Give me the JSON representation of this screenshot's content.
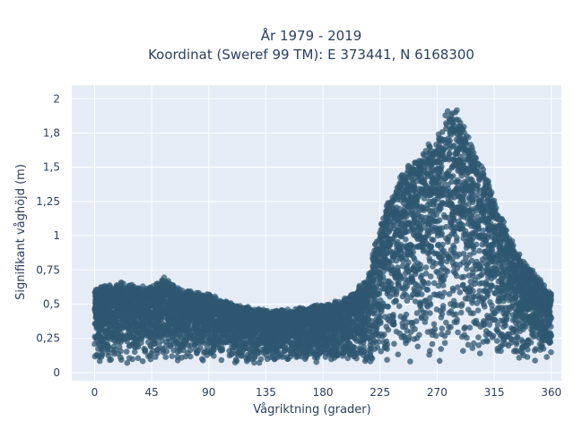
{
  "chart_data": {
    "type": "scatter",
    "title_line1": "År 1979 - 2019",
    "title_line2": "Koordinat (Sweref 99 TM): E 373441, N 6168300",
    "xlabel": "Vågriktning (grader)",
    "ylabel": "Signifikant våghöjd (m)",
    "xlim": [
      -18,
      368
    ],
    "ylim": [
      -0.06,
      2.1
    ],
    "x_ticks": [
      0,
      45,
      90,
      135,
      180,
      225,
      270,
      315,
      360
    ],
    "x_tick_labels": [
      "0",
      "45",
      "90",
      "135",
      "180",
      "225",
      "270",
      "315",
      "360"
    ],
    "y_ticks": [
      0,
      0.25,
      0.5,
      0.75,
      1,
      1.25,
      1.5,
      1.75,
      2
    ],
    "y_tick_labels": [
      "0",
      "0,25",
      "0,5",
      "0,75",
      "1",
      "1,25",
      "1,5",
      "1,8",
      "2"
    ],
    "grid": true,
    "marker_color": "#2f5770",
    "plot_bg": "#e5ecf6",
    "envelope": {
      "direction": [
        0,
        20,
        45,
        55,
        70,
        90,
        110,
        135,
        160,
        180,
        200,
        215,
        225,
        240,
        255,
        270,
        280,
        290,
        300,
        315,
        330,
        345,
        360
      ],
      "max_height": [
        0.62,
        0.66,
        0.63,
        0.7,
        0.6,
        0.58,
        0.5,
        0.46,
        0.47,
        0.5,
        0.55,
        0.7,
        1.1,
        1.45,
        1.6,
        1.75,
        2.02,
        1.85,
        1.62,
        1.3,
        0.95,
        0.75,
        0.58
      ]
    },
    "base_height": 0.06
  }
}
